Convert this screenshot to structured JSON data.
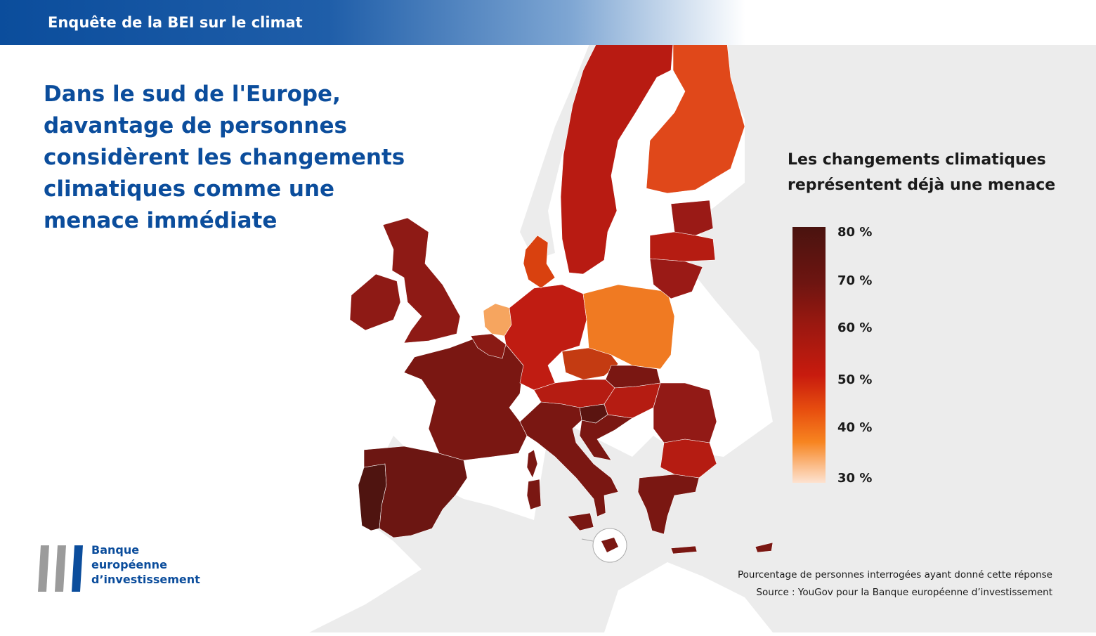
{
  "header": {
    "title": "Enquête de la BEI sur le climat"
  },
  "headline": "Dans le sud de l'Europe, davantage de personnes considèrent les changements climatiques comme une menace immédiate",
  "legend": {
    "title": "Les changements climatiques représentent déjà une menace",
    "ticks": [
      "80 %",
      "70 %",
      "60 %",
      "50 %",
      "40 %",
      "30 %"
    ],
    "range": [
      30,
      80
    ]
  },
  "colors": {
    "brand_blue": "#0b4d9c",
    "land_grey": "#ececec",
    "scale_top": "#4a130f",
    "scale_bottom": "#fde2d0"
  },
  "chart_data": {
    "type": "choropleth",
    "unit": "%",
    "scale": [
      30,
      80
    ],
    "regions": [
      {
        "id": "portugal",
        "color": "#4f1410"
      },
      {
        "id": "spain",
        "color": "#6c1612"
      },
      {
        "id": "france",
        "color": "#7a1712"
      },
      {
        "id": "italy",
        "color": "#7a1712"
      },
      {
        "id": "greece",
        "color": "#7a1712"
      },
      {
        "id": "slovenia",
        "color": "#5a1410"
      },
      {
        "id": "croatia",
        "color": "#7a1712"
      },
      {
        "id": "malta",
        "color": "#7a1712"
      },
      {
        "id": "cyprus",
        "color": "#7a1712"
      },
      {
        "id": "belgium",
        "color": "#8a1a14"
      },
      {
        "id": "luxembourg",
        "color": "#8a1a14"
      },
      {
        "id": "slovakia",
        "color": "#7a1712"
      },
      {
        "id": "ireland",
        "color": "#8e1a15"
      },
      {
        "id": "united-kingdom",
        "color": "#8e1a15"
      },
      {
        "id": "romania",
        "color": "#921a16"
      },
      {
        "id": "estonia",
        "color": "#9a1a16"
      },
      {
        "id": "lithuania",
        "color": "#9a1a16"
      },
      {
        "id": "bulgaria",
        "color": "#b51c12"
      },
      {
        "id": "austria",
        "color": "#b51c12"
      },
      {
        "id": "hungary",
        "color": "#b51c12"
      },
      {
        "id": "latvia",
        "color": "#b51c12"
      },
      {
        "id": "sweden",
        "color": "#b81b12"
      },
      {
        "id": "germany",
        "color": "#c01c12"
      },
      {
        "id": "czechia",
        "color": "#c43b12"
      },
      {
        "id": "denmark",
        "color": "#d9410f"
      },
      {
        "id": "finland",
        "color": "#e0481a"
      },
      {
        "id": "poland",
        "color": "#f07a22"
      },
      {
        "id": "netherlands",
        "color": "#f6a55f"
      }
    ]
  },
  "footnote": {
    "line1": "Pourcentage de personnes interrogées ayant donné cette réponse",
    "line2": "Source : YouGov pour la Banque européenne d’investissement"
  },
  "logo": {
    "line1": "Banque",
    "line2": "européenne",
    "line3": "d’investissement"
  }
}
